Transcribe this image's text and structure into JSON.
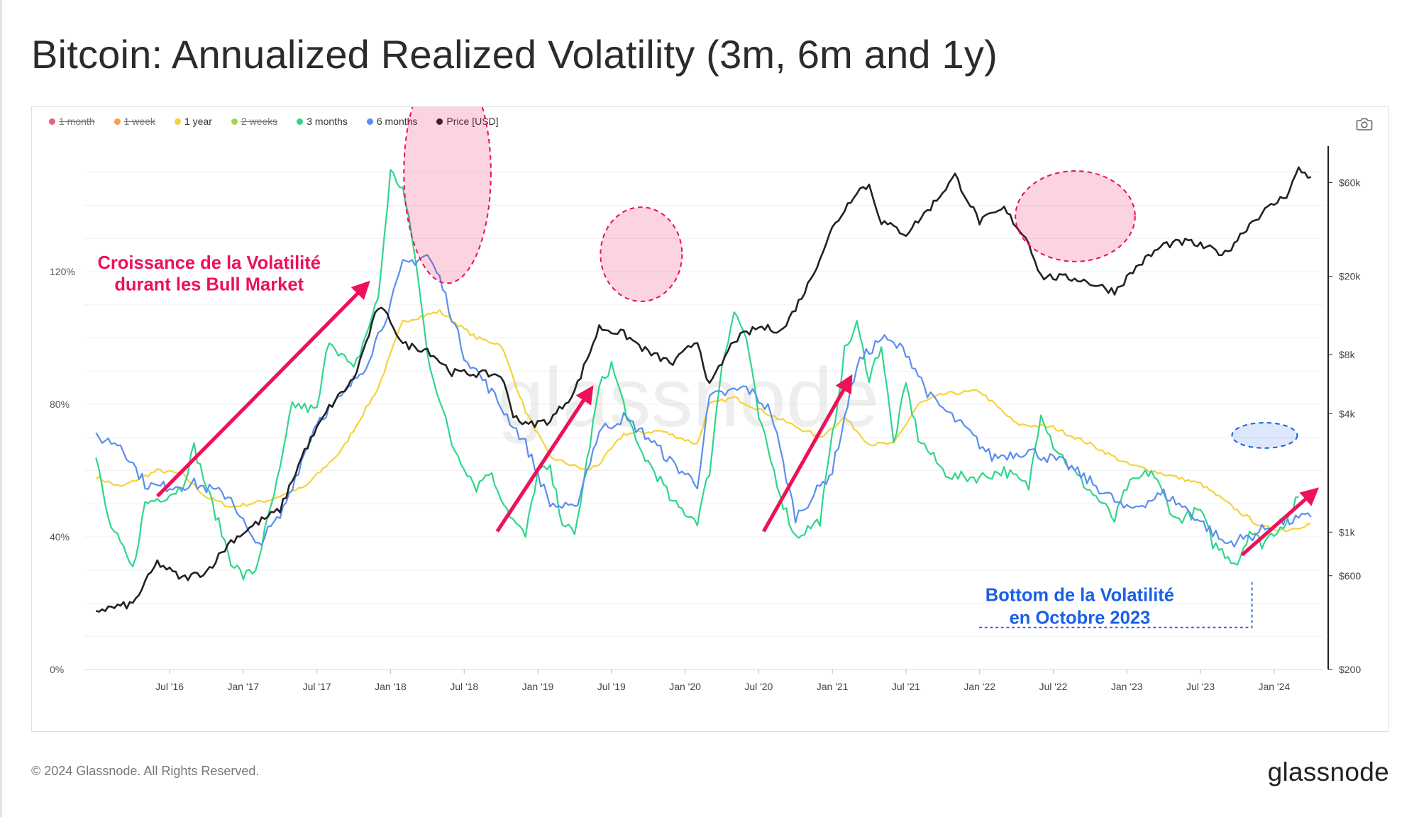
{
  "title": "Bitcoin: Annualized Realized Volatility (3m, 6m and 1y)",
  "footer": {
    "copyright": "© 2024 Glassnode. All Rights Reserved.",
    "logo": "glassnode"
  },
  "watermark": "glassnode",
  "legend": [
    {
      "label": "1 month",
      "color": "#e8627e",
      "disabled": true
    },
    {
      "label": "1 week",
      "color": "#f5a04a",
      "disabled": true
    },
    {
      "label": "1 year",
      "color": "#f2d43a",
      "disabled": false
    },
    {
      "label": "2 weeks",
      "color": "#9fd84a",
      "disabled": true
    },
    {
      "label": "3 months",
      "color": "#2fd68a",
      "disabled": false
    },
    {
      "label": "6 months",
      "color": "#5b8def",
      "disabled": false
    },
    {
      "label": "Price [USD]",
      "color": "#222222",
      "disabled": false
    }
  ],
  "annotations": {
    "bull_text_line1": "Croissance de la Volatilité",
    "bull_text_line2": "durant les Bull Market",
    "bottom_text_line1": "Bottom de la Volatilité",
    "bottom_text_line2": "en Octobre 2023",
    "bull_color": "#ee1158",
    "bottom_color": "#1b5fe6"
  },
  "chart_data": {
    "type": "line",
    "x_ticks": [
      "Jul '16",
      "Jan '17",
      "Jul '17",
      "Jan '18",
      "Jul '18",
      "Jan '19",
      "Jul '19",
      "Jan '20",
      "Jul '20",
      "Jan '21",
      "Jul '21",
      "Jan '22",
      "Jul '22",
      "Jan '23",
      "Jul '23",
      "Jan '24"
    ],
    "y_left": {
      "ticks": [
        "0%",
        "40%",
        "80%",
        "120%"
      ],
      "values": [
        0,
        40,
        80,
        120
      ],
      "range": [
        0,
        160
      ]
    },
    "y_right": {
      "scale": "log",
      "ticks": [
        "$200",
        "$600",
        "$1k",
        "$4k",
        "$8k",
        "$20k",
        "$60k"
      ],
      "values": [
        200,
        600,
        1000,
        4000,
        8000,
        20000,
        60000
      ],
      "range": [
        200,
        100000
      ]
    },
    "x_range": [
      "2015-12",
      "2024-05"
    ],
    "series": [
      {
        "name": "1 year",
        "axis": "left",
        "color": "#f2d43a",
        "points": [
          [
            "2016-01",
            58
          ],
          [
            "2016-03",
            55
          ],
          [
            "2016-06",
            60
          ],
          [
            "2016-08",
            59
          ],
          [
            "2016-10",
            52
          ],
          [
            "2016-12",
            49
          ],
          [
            "2017-03",
            51
          ],
          [
            "2017-06",
            55
          ],
          [
            "2017-09",
            66
          ],
          [
            "2017-12",
            85
          ],
          [
            "2018-02",
            105
          ],
          [
            "2018-05",
            108
          ],
          [
            "2018-08",
            100
          ],
          [
            "2018-10",
            98
          ],
          [
            "2018-12",
            78
          ],
          [
            "2019-02",
            64
          ],
          [
            "2019-05",
            60
          ],
          [
            "2019-06",
            62
          ],
          [
            "2019-08",
            71
          ],
          [
            "2019-11",
            72
          ],
          [
            "2020-02",
            68
          ],
          [
            "2020-03",
            80
          ],
          [
            "2020-05",
            82
          ],
          [
            "2020-09",
            75
          ],
          [
            "2020-12",
            70
          ],
          [
            "2021-02",
            76
          ],
          [
            "2021-04",
            68
          ],
          [
            "2021-06",
            68
          ],
          [
            "2021-08",
            80
          ],
          [
            "2021-10",
            83
          ],
          [
            "2022-01",
            84
          ],
          [
            "2022-04",
            74
          ],
          [
            "2022-07",
            73
          ],
          [
            "2022-10",
            68
          ],
          [
            "2023-01",
            62
          ],
          [
            "2023-04",
            59
          ],
          [
            "2023-07",
            56
          ],
          [
            "2023-10",
            48
          ],
          [
            "2023-12",
            43
          ],
          [
            "2024-02",
            42
          ],
          [
            "2024-04",
            44
          ]
        ]
      },
      {
        "name": "3 months",
        "axis": "left",
        "color": "#2fd68a",
        "points": [
          [
            "2016-01",
            64
          ],
          [
            "2016-02",
            45
          ],
          [
            "2016-04",
            30
          ],
          [
            "2016-05",
            50
          ],
          [
            "2016-07",
            53
          ],
          [
            "2016-08",
            55
          ],
          [
            "2016-09",
            67
          ],
          [
            "2016-10",
            55
          ],
          [
            "2016-12",
            33
          ],
          [
            "2017-01",
            28
          ],
          [
            "2017-02",
            30
          ],
          [
            "2017-04",
            60
          ],
          [
            "2017-05",
            80
          ],
          [
            "2017-07",
            78
          ],
          [
            "2017-08",
            100
          ],
          [
            "2017-10",
            90
          ],
          [
            "2017-12",
            112
          ],
          [
            "2018-01",
            150
          ],
          [
            "2018-02",
            145
          ],
          [
            "2018-03",
            125
          ],
          [
            "2018-04",
            95
          ],
          [
            "2018-06",
            68
          ],
          [
            "2018-08",
            55
          ],
          [
            "2018-09",
            60
          ],
          [
            "2018-11",
            45
          ],
          [
            "2018-12",
            40
          ],
          [
            "2019-01",
            60
          ],
          [
            "2019-02",
            60
          ],
          [
            "2019-03",
            45
          ],
          [
            "2019-04",
            40
          ],
          [
            "2019-06",
            85
          ],
          [
            "2019-07",
            92
          ],
          [
            "2019-09",
            68
          ],
          [
            "2019-11",
            57
          ],
          [
            "2019-12",
            50
          ],
          [
            "2020-02",
            45
          ],
          [
            "2020-03",
            60
          ],
          [
            "2020-04",
            92
          ],
          [
            "2020-05",
            108
          ],
          [
            "2020-06",
            100
          ],
          [
            "2020-07",
            76
          ],
          [
            "2020-09",
            50
          ],
          [
            "2020-10",
            40
          ],
          [
            "2020-12",
            45
          ],
          [
            "2021-01",
            70
          ],
          [
            "2021-02",
            96
          ],
          [
            "2021-03",
            104
          ],
          [
            "2021-04",
            88
          ],
          [
            "2021-05",
            98
          ],
          [
            "2021-06",
            68
          ],
          [
            "2021-07",
            86
          ],
          [
            "2021-08",
            70
          ],
          [
            "2021-10",
            60
          ],
          [
            "2021-11",
            58
          ],
          [
            "2022-01",
            58
          ],
          [
            "2022-03",
            60
          ],
          [
            "2022-05",
            55
          ],
          [
            "2022-06",
            78
          ],
          [
            "2022-07",
            68
          ],
          [
            "2022-09",
            58
          ],
          [
            "2022-11",
            50
          ],
          [
            "2022-12",
            45
          ],
          [
            "2023-01",
            55
          ],
          [
            "2023-03",
            60
          ],
          [
            "2023-05",
            45
          ],
          [
            "2023-07",
            48
          ],
          [
            "2023-08",
            38
          ],
          [
            "2023-10",
            32
          ],
          [
            "2023-11",
            42
          ],
          [
            "2023-12",
            38
          ],
          [
            "2024-02",
            45
          ],
          [
            "2024-03",
            52
          ]
        ]
      },
      {
        "name": "6 months",
        "axis": "left",
        "color": "#5b8def",
        "points": [
          [
            "2016-01",
            70
          ],
          [
            "2016-03",
            68
          ],
          [
            "2016-05",
            56
          ],
          [
            "2016-06",
            55
          ],
          [
            "2016-09",
            56
          ],
          [
            "2016-12",
            52
          ],
          [
            "2017-02",
            37
          ],
          [
            "2017-04",
            46
          ],
          [
            "2017-07",
            75
          ],
          [
            "2017-09",
            82
          ],
          [
            "2017-11",
            92
          ],
          [
            "2018-01",
            110
          ],
          [
            "2018-02",
            122
          ],
          [
            "2018-04",
            125
          ],
          [
            "2018-05",
            118
          ],
          [
            "2018-07",
            95
          ],
          [
            "2018-09",
            85
          ],
          [
            "2018-12",
            68
          ],
          [
            "2019-02",
            50
          ],
          [
            "2019-04",
            48
          ],
          [
            "2019-06",
            72
          ],
          [
            "2019-08",
            76
          ],
          [
            "2019-10",
            70
          ],
          [
            "2019-12",
            62
          ],
          [
            "2020-02",
            56
          ],
          [
            "2020-03",
            82
          ],
          [
            "2020-06",
            85
          ],
          [
            "2020-08",
            78
          ],
          [
            "2020-10",
            46
          ],
          [
            "2020-12",
            55
          ],
          [
            "2021-01",
            60
          ],
          [
            "2021-03",
            92
          ],
          [
            "2021-05",
            100
          ],
          [
            "2021-07",
            96
          ],
          [
            "2021-09",
            82
          ],
          [
            "2021-12",
            72
          ],
          [
            "2022-02",
            64
          ],
          [
            "2022-05",
            66
          ],
          [
            "2022-08",
            62
          ],
          [
            "2022-11",
            54
          ],
          [
            "2023-01",
            48
          ],
          [
            "2023-04",
            53
          ],
          [
            "2023-06",
            48
          ],
          [
            "2023-09",
            38
          ],
          [
            "2023-11",
            40
          ],
          [
            "2024-01",
            44
          ],
          [
            "2024-04",
            46
          ]
        ]
      },
      {
        "name": "Price [USD]",
        "axis": "right",
        "color": "#222222",
        "points": [
          [
            "2016-01",
            400
          ],
          [
            "2016-04",
            430
          ],
          [
            "2016-06",
            700
          ],
          [
            "2016-08",
            580
          ],
          [
            "2016-10",
            630
          ],
          [
            "2016-12",
            900
          ],
          [
            "2017-02",
            1100
          ],
          [
            "2017-04",
            1300
          ],
          [
            "2017-06",
            2600
          ],
          [
            "2017-08",
            4300
          ],
          [
            "2017-10",
            6000
          ],
          [
            "2017-12",
            14000
          ],
          [
            "2018-01",
            12000
          ],
          [
            "2018-02",
            9000
          ],
          [
            "2018-04",
            8500
          ],
          [
            "2018-06",
            6500
          ],
          [
            "2018-08",
            6400
          ],
          [
            "2018-10",
            6300
          ],
          [
            "2018-11",
            4000
          ],
          [
            "2018-12",
            3500
          ],
          [
            "2019-02",
            3700
          ],
          [
            "2019-04",
            5200
          ],
          [
            "2019-06",
            11000
          ],
          [
            "2019-08",
            10200
          ],
          [
            "2019-10",
            8200
          ],
          [
            "2019-12",
            7200
          ],
          [
            "2020-02",
            9500
          ],
          [
            "2020-03",
            5500
          ],
          [
            "2020-05",
            9500
          ],
          [
            "2020-07",
            11000
          ],
          [
            "2020-09",
            10700
          ],
          [
            "2020-11",
            18000
          ],
          [
            "2021-01",
            35000
          ],
          [
            "2021-03",
            55000
          ],
          [
            "2021-04",
            58000
          ],
          [
            "2021-05",
            38000
          ],
          [
            "2021-07",
            33000
          ],
          [
            "2021-09",
            45000
          ],
          [
            "2021-11",
            65000
          ],
          [
            "2022-01",
            38000
          ],
          [
            "2022-03",
            44000
          ],
          [
            "2022-05",
            30000
          ],
          [
            "2022-06",
            20000
          ],
          [
            "2022-09",
            19500
          ],
          [
            "2022-12",
            16800
          ],
          [
            "2023-02",
            23000
          ],
          [
            "2023-04",
            29000
          ],
          [
            "2023-06",
            30000
          ],
          [
            "2023-09",
            26000
          ],
          [
            "2023-11",
            37000
          ],
          [
            "2023-12",
            42000
          ],
          [
            "2024-02",
            52000
          ],
          [
            "2024-03",
            70000
          ],
          [
            "2024-04",
            64000
          ]
        ]
      }
    ]
  }
}
